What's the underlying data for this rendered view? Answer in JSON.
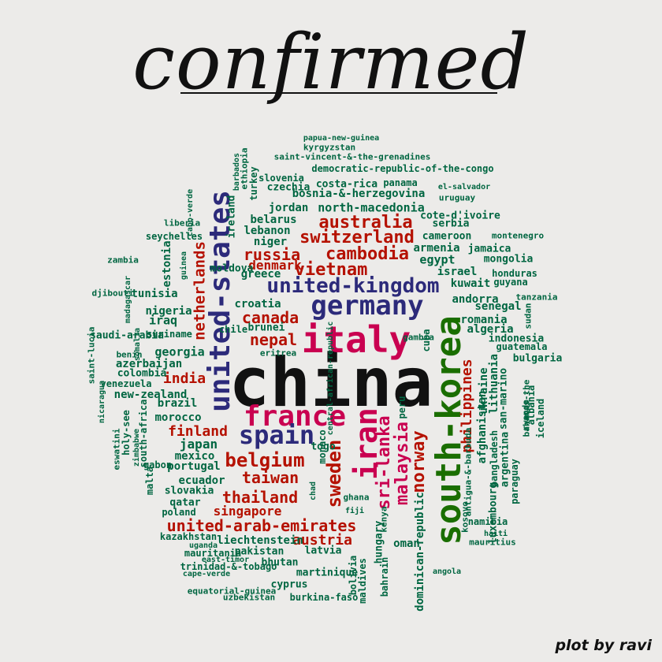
{
  "title": "confirmed",
  "credit": "plot by ravi",
  "colors": {
    "background": "#ecebe9",
    "dark_green": "#006641",
    "green": "#1a6e00",
    "red": "#b51100",
    "crimson": "#c90050",
    "navy": "#2c2a7a",
    "black": "#111111"
  },
  "words": [
    {
      "text": "china",
      "color": "black",
      "size": 86,
      "rotate": 0
    },
    {
      "text": "south-korea",
      "color": "green",
      "size": 44,
      "rotate": -90
    },
    {
      "text": "italy",
      "color": "crimson",
      "size": 46,
      "rotate": 0
    },
    {
      "text": "united-states",
      "color": "navy",
      "size": 36,
      "rotate": -90
    },
    {
      "text": "germany",
      "color": "navy",
      "size": 34,
      "rotate": 0
    },
    {
      "text": "iran",
      "color": "crimson",
      "size": 38,
      "rotate": -90
    },
    {
      "text": "france",
      "color": "crimson",
      "size": 36,
      "rotate": 0
    },
    {
      "text": "spain",
      "color": "navy",
      "size": 32,
      "rotate": 0
    },
    {
      "text": "united-kingdom",
      "color": "navy",
      "size": 26,
      "rotate": 0
    },
    {
      "text": "switzerland",
      "color": "red",
      "size": 22,
      "rotate": 0
    },
    {
      "text": "netherlands",
      "color": "red",
      "size": 19,
      "rotate": -90
    },
    {
      "text": "belgium",
      "color": "red",
      "size": 24,
      "rotate": 0
    },
    {
      "text": "sweden",
      "color": "red",
      "size": 24,
      "rotate": -90
    },
    {
      "text": "malaysia",
      "color": "crimson",
      "size": 22,
      "rotate": -90
    },
    {
      "text": "norway",
      "color": "red",
      "size": 22,
      "rotate": -90
    },
    {
      "text": "sri-lanka",
      "color": "crimson",
      "size": 22,
      "rotate": -90
    },
    {
      "text": "australia",
      "color": "red",
      "size": 22,
      "rotate": 0
    },
    {
      "text": "cambodia",
      "color": "red",
      "size": 22,
      "rotate": 0
    },
    {
      "text": "vietnam",
      "color": "red",
      "size": 22,
      "rotate": 0
    },
    {
      "text": "russia",
      "color": "red",
      "size": 20,
      "rotate": 0
    },
    {
      "text": "canada",
      "color": "red",
      "size": 20,
      "rotate": 0
    },
    {
      "text": "nepal",
      "color": "red",
      "size": 20,
      "rotate": 0
    },
    {
      "text": "thailand",
      "color": "red",
      "size": 20,
      "rotate": 0
    },
    {
      "text": "taiwan",
      "color": "red",
      "size": 20,
      "rotate": 0
    },
    {
      "text": "united-arab-emirates",
      "color": "red",
      "size": 20,
      "rotate": 0
    },
    {
      "text": "philippines",
      "color": "red",
      "size": 18,
      "rotate": -90
    },
    {
      "text": "india",
      "color": "red",
      "size": 18,
      "rotate": 0
    },
    {
      "text": "finland",
      "color": "red",
      "size": 18,
      "rotate": 0
    },
    {
      "text": "austria",
      "color": "red",
      "size": 18,
      "rotate": 0
    },
    {
      "text": "denmark",
      "color": "red",
      "size": 16,
      "rotate": 0
    },
    {
      "text": "singapore",
      "color": "red",
      "size": 16,
      "rotate": 0
    },
    {
      "text": "dominican-republic",
      "color": "dark_green",
      "size": 14,
      "rotate": -90
    },
    {
      "text": "croatia",
      "color": "dark_green",
      "size": 14,
      "rotate": 0
    },
    {
      "text": "georgia",
      "color": "dark_green",
      "size": 15,
      "rotate": 0
    },
    {
      "text": "new-zealand",
      "color": "dark_green",
      "size": 14,
      "rotate": 0
    },
    {
      "text": "brazil",
      "color": "dark_green",
      "size": 14,
      "rotate": 0
    },
    {
      "text": "japan",
      "color": "dark_green",
      "size": 16,
      "rotate": 0
    },
    {
      "text": "portugal",
      "color": "dark_green",
      "size": 14,
      "rotate": 0
    },
    {
      "text": "morocco",
      "color": "dark_green",
      "size": 14,
      "rotate": 0
    },
    {
      "text": "azerbaijan",
      "color": "dark_green",
      "size": 14,
      "rotate": 0
    },
    {
      "text": "romania",
      "color": "dark_green",
      "size": 14,
      "rotate": 0
    },
    {
      "text": "algeria",
      "color": "dark_green",
      "size": 14,
      "rotate": 0
    },
    {
      "text": "israel",
      "color": "dark_green",
      "size": 14,
      "rotate": 0
    },
    {
      "text": "kuwait",
      "color": "dark_green",
      "size": 14,
      "rotate": 0
    },
    {
      "text": "andorra",
      "color": "dark_green",
      "size": 14,
      "rotate": 0
    },
    {
      "text": "senegal",
      "color": "dark_green",
      "size": 14,
      "rotate": 0
    },
    {
      "text": "egypt",
      "color": "dark_green",
      "size": 15,
      "rotate": 0
    },
    {
      "text": "armenia",
      "color": "dark_green",
      "size": 14,
      "rotate": 0
    },
    {
      "text": "jordan",
      "color": "dark_green",
      "size": 14,
      "rotate": 0
    },
    {
      "text": "north-macedonia",
      "color": "dark_green",
      "size": 15,
      "rotate": 0
    },
    {
      "text": "belarus",
      "color": "dark_green",
      "size": 14,
      "rotate": 0
    },
    {
      "text": "lebanon",
      "color": "dark_green",
      "size": 14,
      "rotate": 0
    },
    {
      "text": "niger",
      "color": "dark_green",
      "size": 14,
      "rotate": 0
    },
    {
      "text": "cameroon",
      "color": "dark_green",
      "size": 13,
      "rotate": 0
    },
    {
      "text": "bosnia-&-herzegovina",
      "color": "dark_green",
      "size": 14,
      "rotate": 0
    },
    {
      "text": "czechia",
      "color": "dark_green",
      "size": 13,
      "rotate": 0
    },
    {
      "text": "costa-rica",
      "color": "dark_green",
      "size": 13,
      "rotate": 0
    },
    {
      "text": "slovenia",
      "color": "dark_green",
      "size": 12,
      "rotate": 0
    },
    {
      "text": "panama",
      "color": "dark_green",
      "size": 12,
      "rotate": 0
    },
    {
      "text": "democratic-republic-of-the-congo",
      "color": "dark_green",
      "size": 12,
      "rotate": 0
    },
    {
      "text": "saint-vincent-&-the-grenadines",
      "color": "dark_green",
      "size": 11,
      "rotate": 0
    },
    {
      "text": "kyrgyzstan",
      "color": "dark_green",
      "size": 11,
      "rotate": 0
    },
    {
      "text": "papua-new-guinea",
      "color": "dark_green",
      "size": 10,
      "rotate": 0
    },
    {
      "text": "el-salvador",
      "color": "dark_green",
      "size": 10,
      "rotate": 0
    },
    {
      "text": "uruguay",
      "color": "dark_green",
      "size": 11,
      "rotate": 0
    },
    {
      "text": "cote-d'ivoire",
      "color": "dark_green",
      "size": 13,
      "rotate": 0
    },
    {
      "text": "serbia",
      "color": "dark_green",
      "size": 13,
      "rotate": 0
    },
    {
      "text": "montenegro",
      "color": "dark_green",
      "size": 11,
      "rotate": 0
    },
    {
      "text": "jamaica",
      "color": "dark_green",
      "size": 13,
      "rotate": 0
    },
    {
      "text": "mongolia",
      "color": "dark_green",
      "size": 13,
      "rotate": 0
    },
    {
      "text": "honduras",
      "color": "dark_green",
      "size": 12,
      "rotate": 0
    },
    {
      "text": "guyana",
      "color": "dark_green",
      "size": 12,
      "rotate": 0
    },
    {
      "text": "tanzania",
      "color": "dark_green",
      "size": 11,
      "rotate": 0
    },
    {
      "text": "indonesia",
      "color": "dark_green",
      "size": 13,
      "rotate": 0
    },
    {
      "text": "guatemala",
      "color": "dark_green",
      "size": 12,
      "rotate": 0
    },
    {
      "text": "bulgaria",
      "color": "dark_green",
      "size": 13,
      "rotate": 0
    },
    {
      "text": "sudan",
      "color": "dark_green",
      "size": 11,
      "rotate": -90
    },
    {
      "text": "ukraine",
      "color": "dark_green",
      "size": 14,
      "rotate": -90
    },
    {
      "text": "lithuania",
      "color": "dark_green",
      "size": 14,
      "rotate": -90
    },
    {
      "text": "afghanistan",
      "color": "dark_green",
      "size": 14,
      "rotate": -90
    },
    {
      "text": "san-marino",
      "color": "dark_green",
      "size": 13,
      "rotate": -90
    },
    {
      "text": "bangladesh",
      "color": "dark_green",
      "size": 12,
      "rotate": -90
    },
    {
      "text": "argentina",
      "color": "dark_green",
      "size": 13,
      "rotate": -90
    },
    {
      "text": "paraguay",
      "color": "dark_green",
      "size": 12,
      "rotate": -90
    },
    {
      "text": "rwanda",
      "color": "dark_green",
      "size": 11,
      "rotate": -90
    },
    {
      "text": "bahamas-the",
      "color": "dark_green",
      "size": 11,
      "rotate": -90
    },
    {
      "text": "albania",
      "color": "dark_green",
      "size": 12,
      "rotate": -90
    },
    {
      "text": "iceland",
      "color": "dark_green",
      "size": 12,
      "rotate": -90
    },
    {
      "text": "antigua-&-barbuda",
      "color": "dark_green",
      "size": 11,
      "rotate": -90
    },
    {
      "text": "kosovo",
      "color": "dark_green",
      "size": 11,
      "rotate": -90
    },
    {
      "text": "luxembourg",
      "color": "dark_green",
      "size": 13,
      "rotate": -90
    },
    {
      "text": "namibia",
      "color": "dark_green",
      "size": 12,
      "rotate": 0
    },
    {
      "text": "haiti",
      "color": "dark_green",
      "size": 10,
      "rotate": 0
    },
    {
      "text": "mauritius",
      "color": "dark_green",
      "size": 11,
      "rotate": 0
    },
    {
      "text": "angola",
      "color": "dark_green",
      "size": 10,
      "rotate": 0
    },
    {
      "text": "gambia",
      "color": "dark_green",
      "size": 11,
      "rotate": 0
    },
    {
      "text": "cuba",
      "color": "dark_green",
      "size": 12,
      "rotate": -90
    },
    {
      "text": "peru",
      "color": "dark_green",
      "size": 12,
      "rotate": -90
    },
    {
      "text": "oman",
      "color": "dark_green",
      "size": 14,
      "rotate": 0
    },
    {
      "text": "bahrain",
      "color": "dark_green",
      "size": 12,
      "rotate": -90
    },
    {
      "text": "maldives",
      "color": "dark_green",
      "size": 12,
      "rotate": -90
    },
    {
      "text": "bolivia",
      "color": "dark_green",
      "size": 12,
      "rotate": -90
    },
    {
      "text": "kenya",
      "color": "dark_green",
      "size": 11,
      "rotate": -90
    },
    {
      "text": "fiji",
      "color": "dark_green",
      "size": 10,
      "rotate": 0
    },
    {
      "text": "ghana",
      "color": "dark_green",
      "size": 11,
      "rotate": 0
    },
    {
      "text": "togo",
      "color": "dark_green",
      "size": 13,
      "rotate": 0
    },
    {
      "text": "monaco",
      "color": "dark_green",
      "size": 12,
      "rotate": -90
    },
    {
      "text": "chad",
      "color": "dark_green",
      "size": 10,
      "rotate": -90
    },
    {
      "text": "hungary",
      "color": "dark_green",
      "size": 13,
      "rotate": -90
    },
    {
      "text": "latvia",
      "color": "dark_green",
      "size": 13,
      "rotate": 0
    },
    {
      "text": "liechtenstein",
      "color": "dark_green",
      "size": 14,
      "rotate": 0
    },
    {
      "text": "pakistan",
      "color": "dark_green",
      "size": 13,
      "rotate": 0
    },
    {
      "text": "bhutan",
      "color": "dark_green",
      "size": 13,
      "rotate": 0
    },
    {
      "text": "martinique",
      "color": "dark_green",
      "size": 13,
      "rotate": 0
    },
    {
      "text": "cyprus",
      "color": "dark_green",
      "size": 13,
      "rotate": 0
    },
    {
      "text": "burkina-faso",
      "color": "dark_green",
      "size": 12,
      "rotate": 0
    },
    {
      "text": "uzbekistan",
      "color": "dark_green",
      "size": 11,
      "rotate": 0
    },
    {
      "text": "equatorial-guinea",
      "color": "dark_green",
      "size": 11,
      "rotate": 0
    },
    {
      "text": "cape-verde",
      "color": "dark_green",
      "size": 10,
      "rotate": 0
    },
    {
      "text": "trinidad-&-tobago",
      "color": "dark_green",
      "size": 12,
      "rotate": 0
    },
    {
      "text": "east-timor",
      "color": "dark_green",
      "size": 10,
      "rotate": 0
    },
    {
      "text": "mauritania",
      "color": "dark_green",
      "size": 12,
      "rotate": 0
    },
    {
      "text": "uganda",
      "color": "dark_green",
      "size": 10,
      "rotate": 0
    },
    {
      "text": "kazakhstan",
      "color": "dark_green",
      "size": 12,
      "rotate": 0
    },
    {
      "text": "poland",
      "color": "dark_green",
      "size": 12,
      "rotate": 0
    },
    {
      "text": "qatar",
      "color": "dark_green",
      "size": 13,
      "rotate": 0
    },
    {
      "text": "slovakia",
      "color": "dark_green",
      "size": 13,
      "rotate": 0
    },
    {
      "text": "ecuador",
      "color": "dark_green",
      "size": 14,
      "rotate": 0
    },
    {
      "text": "mexico",
      "color": "dark_green",
      "size": 14,
      "rotate": 0
    },
    {
      "text": "gabon",
      "color": "dark_green",
      "size": 12,
      "rotate": 0
    },
    {
      "text": "malta",
      "color": "dark_green",
      "size": 12,
      "rotate": -90
    },
    {
      "text": "zimbabwe",
      "color": "dark_green",
      "size": 10,
      "rotate": -90
    },
    {
      "text": "south-africa",
      "color": "dark_green",
      "size": 12,
      "rotate": -90
    },
    {
      "text": "holy-see",
      "color": "dark_green",
      "size": 12,
      "rotate": -90
    },
    {
      "text": "eswatini",
      "color": "dark_green",
      "size": 11,
      "rotate": -90
    },
    {
      "text": "nicaragua",
      "color": "dark_green",
      "size": 10,
      "rotate": -90
    },
    {
      "text": "venezuela",
      "color": "dark_green",
      "size": 12,
      "rotate": 0
    },
    {
      "text": "colombia",
      "color": "dark_green",
      "size": 13,
      "rotate": 0
    },
    {
      "text": "benin",
      "color": "dark_green",
      "size": 11,
      "rotate": 0
    },
    {
      "text": "eritrea",
      "color": "dark_green",
      "size": 11,
      "rotate": 0
    },
    {
      "text": "brunei",
      "color": "dark_green",
      "size": 13,
      "rotate": 0
    },
    {
      "text": "chile",
      "color": "dark_green",
      "size": 12,
      "rotate": 0
    },
    {
      "text": "somalia",
      "color": "dark_green",
      "size": 10,
      "rotate": -90
    },
    {
      "text": "saudi-arabia",
      "color": "dark_green",
      "size": 13,
      "rotate": 0
    },
    {
      "text": "suriname",
      "color": "dark_green",
      "size": 12,
      "rotate": 0
    },
    {
      "text": "iraq",
      "color": "dark_green",
      "size": 15,
      "rotate": 0
    },
    {
      "text": "nigeria",
      "color": "dark_green",
      "size": 14,
      "rotate": 0
    },
    {
      "text": "tunisia",
      "color": "dark_green",
      "size": 14,
      "rotate": 0
    },
    {
      "text": "greece",
      "color": "dark_green",
      "size": 14,
      "rotate": 0
    },
    {
      "text": "moldova",
      "color": "dark_green",
      "size": 13,
      "rotate": 0
    },
    {
      "text": "guinea",
      "color": "dark_green",
      "size": 10,
      "rotate": -90
    },
    {
      "text": "estonia",
      "color": "dark_green",
      "size": 14,
      "rotate": -90
    },
    {
      "text": "ireland",
      "color": "dark_green",
      "size": 13,
      "rotate": -90
    },
    {
      "text": "turkey",
      "color": "dark_green",
      "size": 12,
      "rotate": -90
    },
    {
      "text": "ethiopia",
      "color": "dark_green",
      "size": 11,
      "rotate": -90
    },
    {
      "text": "barbados",
      "color": "dark_green",
      "size": 10,
      "rotate": -90
    },
    {
      "text": "cabo-verde",
      "color": "dark_green",
      "size": 10,
      "rotate": -90
    },
    {
      "text": "liberia",
      "color": "dark_green",
      "size": 11,
      "rotate": 0
    },
    {
      "text": "seychelles",
      "color": "dark_green",
      "size": 12,
      "rotate": 0
    },
    {
      "text": "zambia",
      "color": "dark_green",
      "size": 11,
      "rotate": 0
    },
    {
      "text": "djibouti",
      "color": "dark_green",
      "size": 11,
      "rotate": 0
    },
    {
      "text": "madagascar",
      "color": "dark_green",
      "size": 10,
      "rotate": -90
    },
    {
      "text": "saint-lucia",
      "color": "dark_green",
      "size": 11,
      "rotate": -90
    },
    {
      "text": "central-african-republic",
      "color": "dark_green",
      "size": 10,
      "rotate": -90
    }
  ]
}
